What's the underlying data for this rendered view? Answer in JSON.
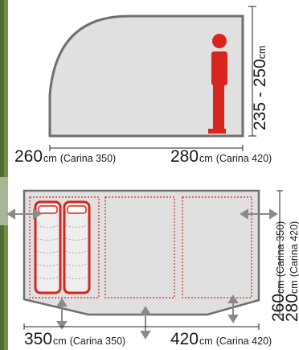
{
  "side_view": {
    "height_value": "235 - 250",
    "height_unit": "cm",
    "length_short_value": "260",
    "length_short_unit": "cm",
    "length_short_model": "(Carina 350)",
    "length_long_value": "280",
    "length_long_unit": "cm",
    "length_long_model": "(Carina 420)"
  },
  "floor_plan": {
    "depth_a_value": "260",
    "depth_a_unit": "cm",
    "depth_a_model": "(Carina 350)",
    "depth_b_value": "280",
    "depth_b_unit": "cm",
    "depth_b_model": "(Carina 420)",
    "width_a_value": "350",
    "width_a_unit": "cm",
    "width_a_model": "(Carina 350)",
    "width_b_value": "420",
    "width_b_unit": "cm",
    "width_b_model": "(Carina 420)"
  },
  "colors": {
    "tent_fill": "#e0e0e0",
    "tent_outline": "#6f6f6f",
    "accent_red": "#d7261e",
    "arrow": "#8a8a8a"
  }
}
